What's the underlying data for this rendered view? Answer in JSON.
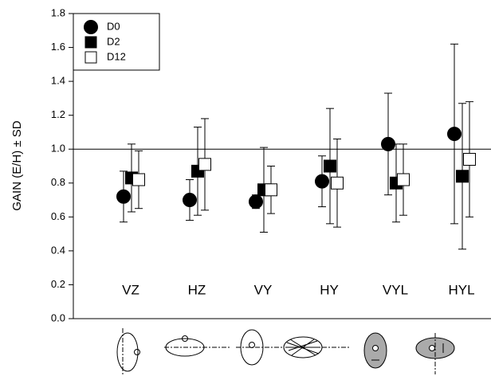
{
  "chart_data": {
    "type": "errorbar",
    "y_label": "GAIN (E/H) ± SD",
    "categories": [
      "VZ",
      "HZ",
      "VY",
      "HY",
      "VYL",
      "HYL"
    ],
    "series": [
      {
        "name": "D0",
        "marker": "circle",
        "color": "#000000",
        "fill": "#000000",
        "values": [
          0.72,
          0.7,
          0.69,
          0.81,
          1.03,
          1.09
        ],
        "errors": [
          0.15,
          0.12,
          0.04,
          0.15,
          0.3,
          0.53
        ]
      },
      {
        "name": "D2",
        "marker": "square",
        "color": "#000000",
        "fill": "#000000",
        "values": [
          0.83,
          0.87,
          0.76,
          0.9,
          0.8,
          0.84
        ],
        "errors": [
          0.2,
          0.26,
          0.25,
          0.34,
          0.23,
          0.43
        ]
      },
      {
        "name": "D12",
        "marker": "square",
        "color": "#000000",
        "fill": "#ffffff",
        "values": [
          0.82,
          0.91,
          0.76,
          0.8,
          0.82,
          0.94
        ],
        "errors": [
          0.17,
          0.27,
          0.14,
          0.26,
          0.21,
          0.34
        ]
      }
    ],
    "ylim": [
      0,
      1.8
    ],
    "yticks": [
      {
        "value": 0,
        "label": "0.0"
      },
      0.2,
      0.4,
      0.6,
      0.8,
      {
        "value": 1,
        "label": "1.0"
      },
      1.2,
      1.4,
      1.6,
      1.8
    ],
    "reference_line": {
      "value": 1,
      "label": "1.0"
    },
    "legend": "upper left"
  }
}
